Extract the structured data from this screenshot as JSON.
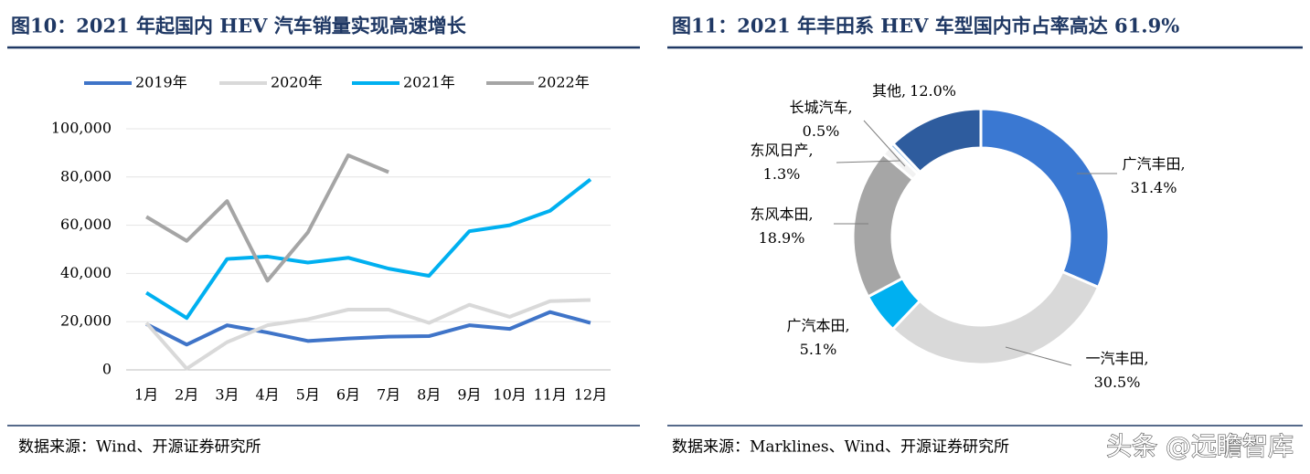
{
  "chart_data": [
    {
      "type": "line",
      "title": "图10：2021 年起国内 HEV 汽车销量实现高速增长",
      "source": "数据来源：Wind、开源证券研究所",
      "categories": [
        "1月",
        "2月",
        "3月",
        "4月",
        "5月",
        "6月",
        "7月",
        "8月",
        "9月",
        "10月",
        "11月",
        "12月"
      ],
      "series": [
        {
          "name": "2019年",
          "color": "#3f74c8",
          "values": [
            19000,
            10500,
            18500,
            15500,
            12000,
            13000,
            13800,
            14000,
            18500,
            17000,
            24000,
            19500
          ]
        },
        {
          "name": "2020年",
          "color": "#d9d9d9",
          "values": [
            19500,
            500,
            11500,
            18500,
            21000,
            25000,
            25000,
            19500,
            27000,
            22000,
            28500,
            29000
          ]
        },
        {
          "name": "2021年",
          "color": "#00b0f0",
          "values": [
            32000,
            21500,
            46000,
            47000,
            44500,
            46500,
            42000,
            39000,
            57500,
            60000,
            66000,
            79000
          ]
        },
        {
          "name": "2022年",
          "color": "#a5a5a5",
          "values": [
            63500,
            53500,
            70000,
            37000,
            57000,
            89000,
            82000,
            null,
            null,
            null,
            null,
            null
          ]
        }
      ],
      "ylim": [
        0,
        100000
      ],
      "yticks": [
        0,
        {
          "value": 20000,
          "label": "20,000"
        },
        {
          "value": 40000,
          "label": "40,000"
        },
        {
          "value": 60000,
          "label": "60,000"
        },
        {
          "value": 80000,
          "label": "80,000"
        },
        {
          "value": 100000,
          "label": "100,000"
        }
      ],
      "grid": true,
      "legend": "top"
    },
    {
      "type": "donut",
      "title": "图11：2021 年丰田系 HEV 车型国内市占率高达 61.9%",
      "source": "数据来源：Marklines、Wind、开源证券研究所",
      "label_separator": ",",
      "categories": [
        "广汽丰田",
        "一汽丰田",
        "广汽本田",
        "东风本田",
        "东风日产",
        "长城汽车",
        "其他"
      ],
      "values": [
        31.4,
        30.5,
        5.1,
        18.9,
        1.3,
        0.5,
        12.0
      ],
      "value_labels": [
        "31.4%",
        "30.5%",
        "5.1%",
        "18.9%",
        "1.3%",
        "0.5%",
        "12.0%"
      ],
      "colors": [
        "#3a78d2",
        "#d9d9d9",
        "#00b0f0",
        "#a6a6a6",
        "#f2f2f2",
        "#9dc3e6",
        "#2e5c9e"
      ]
    }
  ],
  "watermark": "头条 @远瞻智库"
}
